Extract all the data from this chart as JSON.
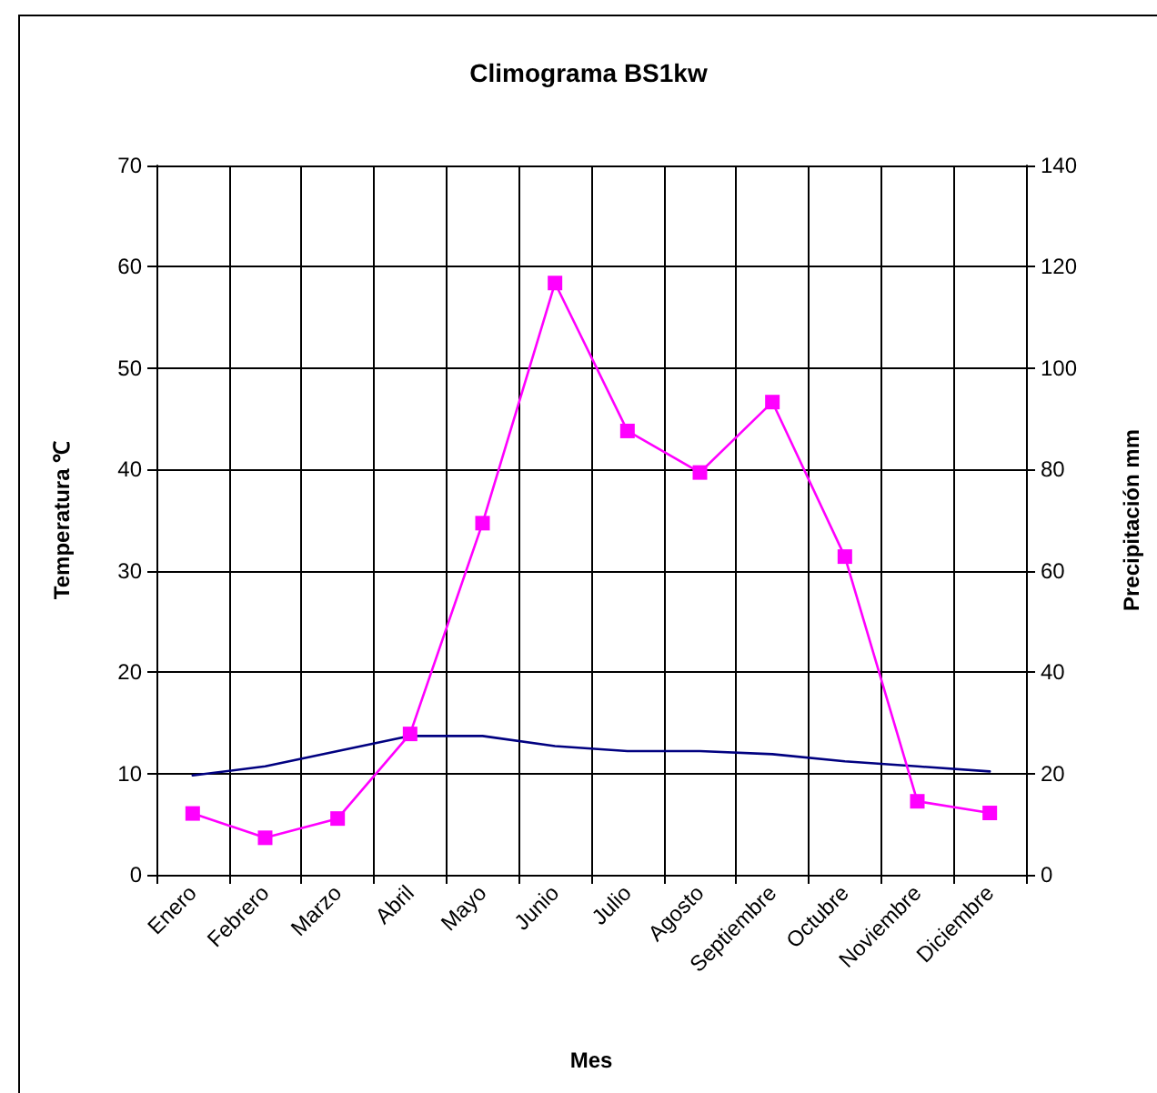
{
  "chart_data": {
    "type": "line",
    "title": "Climograma BS1kw",
    "xlabel": "Mes",
    "ylabel": "Temperatura ℃",
    "y2label": "Precipitación mm",
    "categories": [
      "Enero",
      "Febrero",
      "Marzo",
      "Abril",
      "Mayo",
      "Junio",
      "Julio",
      "Agosto",
      "Septiembre",
      "Octubre",
      "Noviembre",
      "Diciembre"
    ],
    "series": [
      {
        "color": "#000080",
        "marker": "none",
        "values": [
          9.8,
          10.7,
          12.2,
          13.7,
          13.7,
          12.7,
          12.2,
          12.2,
          11.9,
          11.2,
          10.7,
          10.2
        ]
      },
      {
        "color": "#ff00ff",
        "marker": "square",
        "axis": "y2",
        "values": [
          12.1,
          7.3,
          11.1,
          27.8,
          69.4,
          116.8,
          87.6,
          79.4,
          93.3,
          62.8,
          14.5,
          12.2
        ]
      }
    ],
    "ylim": [
      0,
      70
    ],
    "yticks": [
      0,
      10,
      20,
      30,
      40,
      50,
      60,
      70
    ],
    "y2lim": [
      0,
      140
    ],
    "y2ticks": [
      0,
      20,
      40,
      60,
      80,
      100,
      120,
      140
    ],
    "grid": true
  }
}
